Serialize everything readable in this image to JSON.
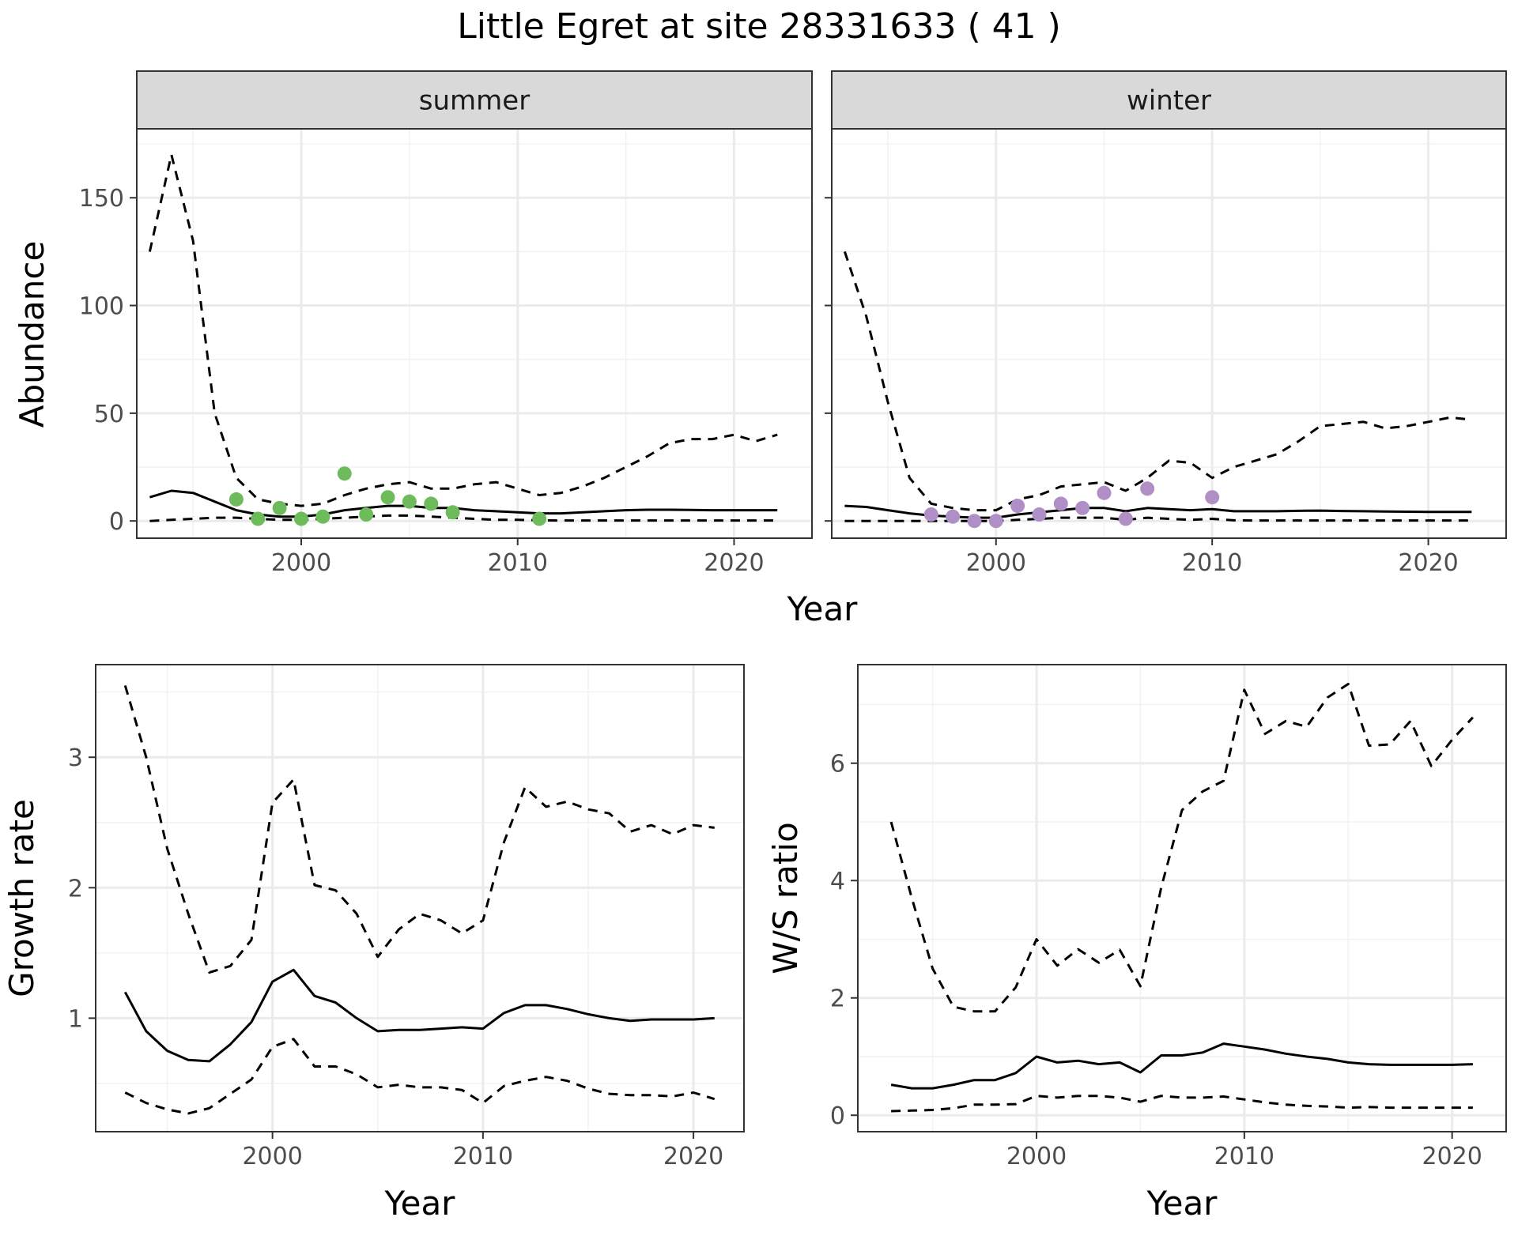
{
  "figure": {
    "title": "Little Egret at site 28331633 ( 41 )"
  },
  "colors": {
    "summer_points": "#6dbb5a",
    "winter_points": "#b08fc7",
    "line": "#000000",
    "grid": "#ebebeb",
    "strip_fill": "#d9d9d9",
    "panel_border": "#333333"
  },
  "chart_data": [
    {
      "type": "line",
      "facet": "summer",
      "strip_label": "summer",
      "xlabel": "Year",
      "ylabel": "Abundance",
      "xlim": [
        1992.4,
        2023.6
      ],
      "ylim": [
        -8,
        182
      ],
      "x_ticks": [
        2000,
        2010,
        2020
      ],
      "y_ticks": [
        0,
        50,
        100,
        150
      ],
      "grid": true,
      "series": [
        {
          "role": "estimate",
          "style": "solid",
          "x": [
            1993,
            1994,
            1995,
            1996,
            1997,
            1998,
            1999,
            2000,
            2001,
            2002,
            2003,
            2004,
            2005,
            2006,
            2007,
            2008,
            2009,
            2010,
            2011,
            2012,
            2013,
            2014,
            2015,
            2016,
            2017,
            2018,
            2019,
            2020,
            2021,
            2022
          ],
          "y": [
            11,
            14,
            13,
            9,
            5,
            3,
            2,
            2,
            3,
            5,
            6,
            7,
            7,
            6,
            6,
            5,
            4.5,
            4,
            3.5,
            3.5,
            4,
            4.5,
            5,
            5.2,
            5.2,
            5.1,
            5,
            5,
            5,
            5
          ]
        },
        {
          "role": "upper",
          "style": "dashed",
          "x": [
            1993,
            1994,
            1995,
            1996,
            1997,
            1998,
            1999,
            2000,
            2001,
            2002,
            2003,
            2004,
            2005,
            2006,
            2007,
            2008,
            2009,
            2010,
            2011,
            2012,
            2013,
            2014,
            2015,
            2016,
            2017,
            2018,
            2019,
            2020,
            2021,
            2022
          ],
          "y": [
            125,
            170,
            130,
            50,
            20,
            10,
            8,
            7,
            8,
            12,
            15,
            17,
            18,
            15,
            15,
            17,
            18,
            15,
            12,
            13,
            16,
            20,
            25,
            30,
            36,
            38,
            38,
            40,
            37,
            40
          ]
        },
        {
          "role": "lower",
          "style": "dashed",
          "x": [
            1993,
            1994,
            1995,
            1996,
            1997,
            1998,
            1999,
            2000,
            2001,
            2002,
            2003,
            2004,
            2005,
            2006,
            2007,
            2008,
            2009,
            2010,
            2011,
            2012,
            2013,
            2014,
            2015,
            2016,
            2017,
            2018,
            2019,
            2020,
            2021,
            2022
          ],
          "y": [
            0,
            0.5,
            1,
            1.5,
            1.5,
            1,
            0.5,
            0.5,
            1,
            1.5,
            2,
            2.5,
            2.5,
            2,
            1.5,
            1,
            0.5,
            0.5,
            0.3,
            0.2,
            0.2,
            0.2,
            0.2,
            0.2,
            0.2,
            0.2,
            0.2,
            0.2,
            0.2,
            0.2
          ]
        }
      ],
      "points": {
        "x": [
          1997,
          1998,
          1999,
          2000,
          2001,
          2002,
          2003,
          2004,
          2005,
          2006,
          2007,
          2011
        ],
        "y": [
          10,
          1,
          6,
          1,
          2,
          22,
          3,
          11,
          9,
          8,
          4,
          1
        ]
      }
    },
    {
      "type": "line",
      "facet": "winter",
      "strip_label": "winter",
      "xlabel": "Year",
      "ylabel": "Abundance",
      "xlim": [
        1992.4,
        2023.6
      ],
      "ylim": [
        -8,
        182
      ],
      "x_ticks": [
        2000,
        2010,
        2020
      ],
      "y_ticks": [
        0,
        50,
        100,
        150
      ],
      "grid": true,
      "series": [
        {
          "role": "estimate",
          "style": "solid",
          "x": [
            1993,
            1994,
            1995,
            1996,
            1997,
            1998,
            1999,
            2000,
            2001,
            2002,
            2003,
            2004,
            2005,
            2006,
            2007,
            2008,
            2009,
            2010,
            2011,
            2012,
            2013,
            2014,
            2015,
            2016,
            2017,
            2018,
            2019,
            2020,
            2021,
            2022
          ],
          "y": [
            7,
            6.5,
            5,
            3.5,
            2.5,
            2,
            1.5,
            1.5,
            3,
            4,
            5,
            6,
            6,
            4.5,
            6,
            5.5,
            5,
            5.5,
            4.5,
            4.5,
            4.5,
            4.7,
            4.8,
            4.6,
            4.5,
            4.4,
            4.3,
            4.2,
            4.2,
            4.2
          ]
        },
        {
          "role": "upper",
          "style": "dashed",
          "x": [
            1993,
            1994,
            1995,
            1996,
            1997,
            1998,
            1999,
            2000,
            2001,
            2002,
            2003,
            2004,
            2005,
            2006,
            2007,
            2008,
            2009,
            2010,
            2011,
            2012,
            2013,
            2014,
            2015,
            2016,
            2017,
            2018,
            2019,
            2020,
            2021,
            2022
          ],
          "y": [
            125,
            95,
            55,
            20,
            8,
            6,
            5,
            5,
            10,
            12,
            16,
            17,
            18,
            14,
            20,
            28,
            27,
            20,
            25,
            28,
            31,
            37,
            44,
            45,
            46,
            43,
            44,
            46,
            48,
            47
          ]
        },
        {
          "role": "lower",
          "style": "dashed",
          "x": [
            1993,
            1994,
            1995,
            1996,
            1997,
            1998,
            1999,
            2000,
            2001,
            2002,
            2003,
            2004,
            2005,
            2006,
            2007,
            2008,
            2009,
            2010,
            2011,
            2012,
            2013,
            2014,
            2015,
            2016,
            2017,
            2018,
            2019,
            2020,
            2021,
            2022
          ],
          "y": [
            0,
            0,
            0,
            0,
            0,
            0,
            0,
            0,
            0.5,
            1,
            1.5,
            1.5,
            1.5,
            0.5,
            1.5,
            1,
            0.5,
            1,
            0.3,
            0.2,
            0.2,
            0.2,
            0.2,
            0.2,
            0.2,
            0.2,
            0.2,
            0.2,
            0.2,
            0.2
          ]
        }
      ],
      "points": {
        "x": [
          1997,
          1998,
          1999,
          2000,
          2001,
          2002,
          2003,
          2004,
          2005,
          2006,
          2007,
          2010
        ],
        "y": [
          3,
          2,
          0,
          0,
          7,
          3,
          8,
          6,
          13,
          1,
          15,
          11
        ]
      }
    },
    {
      "type": "line",
      "xlabel": "Year",
      "ylabel": "Growth rate",
      "xlim": [
        1991.6,
        2022.4
      ],
      "ylim": [
        0.13,
        3.71
      ],
      "x_ticks": [
        2000,
        2010,
        2020
      ],
      "y_ticks": [
        1,
        2,
        3
      ],
      "grid": true,
      "series": [
        {
          "role": "estimate",
          "style": "solid",
          "x": [
            1993,
            1994,
            1995,
            1996,
            1997,
            1998,
            1999,
            2000,
            2001,
            2002,
            2003,
            2004,
            2005,
            2006,
            2007,
            2008,
            2009,
            2010,
            2011,
            2012,
            2013,
            2014,
            2015,
            2016,
            2017,
            2018,
            2019,
            2020,
            2021
          ],
          "y": [
            1.2,
            0.9,
            0.75,
            0.68,
            0.67,
            0.8,
            0.97,
            1.28,
            1.37,
            1.17,
            1.12,
            1.0,
            0.9,
            0.91,
            0.91,
            0.92,
            0.93,
            0.92,
            1.04,
            1.1,
            1.1,
            1.07,
            1.03,
            1.0,
            0.98,
            0.99,
            0.99,
            0.99,
            1.0
          ]
        },
        {
          "role": "upper",
          "style": "dashed",
          "x": [
            1993,
            1994,
            1995,
            1996,
            1997,
            1998,
            1999,
            2000,
            2001,
            2002,
            2003,
            2004,
            2005,
            2006,
            2007,
            2008,
            2009,
            2010,
            2011,
            2012,
            2013,
            2014,
            2015,
            2016,
            2017,
            2018,
            2019,
            2020,
            2021
          ],
          "y": [
            3.55,
            3.0,
            2.3,
            1.8,
            1.35,
            1.4,
            1.6,
            2.65,
            2.83,
            2.02,
            1.98,
            1.8,
            1.47,
            1.68,
            1.8,
            1.75,
            1.65,
            1.75,
            2.35,
            2.77,
            2.62,
            2.66,
            2.6,
            2.57,
            2.43,
            2.48,
            2.41,
            2.48,
            2.46
          ]
        },
        {
          "role": "lower",
          "style": "dashed",
          "x": [
            1993,
            1994,
            1995,
            1996,
            1997,
            1998,
            1999,
            2000,
            2001,
            2002,
            2003,
            2004,
            2005,
            2006,
            2007,
            2008,
            2009,
            2010,
            2011,
            2012,
            2013,
            2014,
            2015,
            2016,
            2017,
            2018,
            2019,
            2020,
            2021
          ],
          "y": [
            0.43,
            0.35,
            0.3,
            0.27,
            0.31,
            0.42,
            0.53,
            0.78,
            0.84,
            0.63,
            0.63,
            0.57,
            0.47,
            0.49,
            0.47,
            0.47,
            0.45,
            0.35,
            0.48,
            0.52,
            0.55,
            0.52,
            0.46,
            0.42,
            0.41,
            0.41,
            0.4,
            0.43,
            0.38
          ]
        }
      ]
    },
    {
      "type": "line",
      "xlabel": "Year",
      "ylabel": "W/S ratio",
      "xlim": [
        1991.4,
        2022.6
      ],
      "ylim": [
        -0.28,
        7.68
      ],
      "x_ticks": [
        2000,
        2010,
        2020
      ],
      "y_ticks": [
        0,
        2,
        4,
        6
      ],
      "grid": true,
      "series": [
        {
          "role": "estimate",
          "style": "solid",
          "x": [
            1993,
            1994,
            1995,
            1996,
            1997,
            1998,
            1999,
            2000,
            2001,
            2002,
            2003,
            2004,
            2005,
            2006,
            2007,
            2008,
            2009,
            2010,
            2011,
            2012,
            2013,
            2014,
            2015,
            2016,
            2017,
            2018,
            2019,
            2020,
            2021
          ],
          "y": [
            0.52,
            0.46,
            0.46,
            0.52,
            0.6,
            0.6,
            0.72,
            1.0,
            0.9,
            0.93,
            0.87,
            0.9,
            0.73,
            1.02,
            1.02,
            1.07,
            1.22,
            1.17,
            1.12,
            1.05,
            1.0,
            0.96,
            0.9,
            0.87,
            0.86,
            0.86,
            0.86,
            0.86,
            0.87
          ]
        },
        {
          "role": "upper",
          "style": "dashed",
          "x": [
            1993,
            1994,
            1995,
            1996,
            1997,
            1998,
            1999,
            2000,
            2001,
            2002,
            2003,
            2004,
            2005,
            2006,
            2007,
            2008,
            2009,
            2010,
            2011,
            2012,
            2013,
            2014,
            2015,
            2016,
            2017,
            2018,
            2019,
            2020,
            2021
          ],
          "y": [
            5.0,
            3.7,
            2.5,
            1.85,
            1.77,
            1.77,
            2.18,
            3.0,
            2.55,
            2.83,
            2.6,
            2.82,
            2.2,
            3.88,
            5.2,
            5.52,
            5.7,
            7.25,
            6.5,
            6.72,
            6.62,
            7.12,
            7.35,
            6.3,
            6.32,
            6.72,
            5.95,
            6.4,
            6.78
          ]
        },
        {
          "role": "lower",
          "style": "dashed",
          "x": [
            1993,
            1994,
            1995,
            1996,
            1997,
            1998,
            1999,
            2000,
            2001,
            2002,
            2003,
            2004,
            2005,
            2006,
            2007,
            2008,
            2009,
            2010,
            2011,
            2012,
            2013,
            2014,
            2015,
            2016,
            2017,
            2018,
            2019,
            2020,
            2021
          ],
          "y": [
            0.07,
            0.08,
            0.09,
            0.12,
            0.18,
            0.18,
            0.19,
            0.33,
            0.3,
            0.33,
            0.33,
            0.3,
            0.23,
            0.33,
            0.3,
            0.3,
            0.32,
            0.27,
            0.22,
            0.18,
            0.16,
            0.15,
            0.13,
            0.14,
            0.13,
            0.13,
            0.13,
            0.13,
            0.13
          ]
        }
      ]
    }
  ]
}
